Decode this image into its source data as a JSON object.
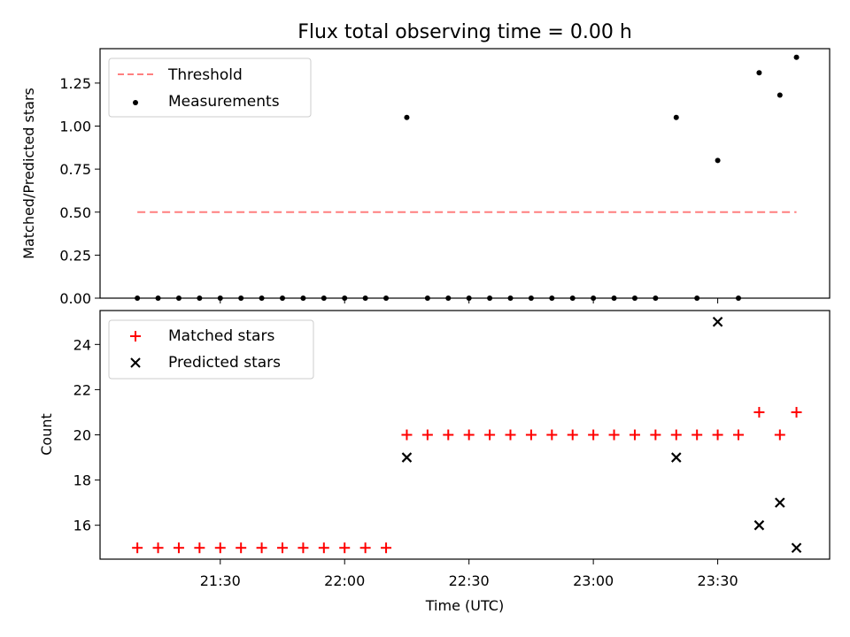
{
  "chart_data": [
    {
      "type": "scatter",
      "title": "Flux total observing time = 0.00 h",
      "ylabel": "Matched/Predicted stars",
      "ylim": [
        0,
        1.45
      ],
      "yticks": [
        0,
        0.25,
        0.5,
        0.75,
        1.0,
        1.25
      ],
      "ytick_labels": [
        "0.00",
        "0.25",
        "0.50",
        "0.75",
        "1.00",
        "1.25"
      ],
      "legend_position": "top-left",
      "series": [
        {
          "name": "Threshold",
          "style": "dashed-line",
          "color": "#ff7f7f",
          "x": [
            "21:10",
            "23:49"
          ],
          "y": [
            0.5,
            0.5
          ]
        },
        {
          "name": "Measurements",
          "style": "dot",
          "color": "#000000",
          "x": [
            "21:10",
            "21:15",
            "21:20",
            "21:25",
            "21:30",
            "21:35",
            "21:40",
            "21:45",
            "21:50",
            "21:55",
            "22:00",
            "22:05",
            "22:10",
            "22:15",
            "22:20",
            "22:25",
            "22:30",
            "22:35",
            "22:40",
            "22:45",
            "22:50",
            "22:55",
            "23:00",
            "23:05",
            "23:10",
            "23:15",
            "23:20",
            "23:25",
            "23:30",
            "23:35",
            "23:40",
            "23:45",
            "23:49"
          ],
          "y": [
            0,
            0,
            0,
            0,
            0,
            0,
            0,
            0,
            0,
            0,
            0,
            0,
            0,
            1.05,
            0,
            0,
            0,
            0,
            0,
            0,
            0,
            0,
            0,
            0,
            0,
            0,
            1.05,
            0,
            0.8,
            0,
            1.31,
            1.18,
            1.4
          ]
        }
      ]
    },
    {
      "type": "scatter",
      "xlabel": "Time (UTC)",
      "ylabel": "Count",
      "xlim": [
        "21:01",
        "23:57"
      ],
      "xticks": [
        "21:30",
        "22:00",
        "22:30",
        "23:00",
        "23:30"
      ],
      "ylim": [
        14.5,
        25.5
      ],
      "yticks": [
        16,
        18,
        20,
        22,
        24
      ],
      "legend_position": "top-left",
      "series": [
        {
          "name": "Matched stars",
          "marker": "plus",
          "color": "#ff0000",
          "x": [
            "21:10",
            "21:15",
            "21:20",
            "21:25",
            "21:30",
            "21:35",
            "21:40",
            "21:45",
            "21:50",
            "21:55",
            "22:00",
            "22:05",
            "22:10",
            "22:15",
            "22:20",
            "22:25",
            "22:30",
            "22:35",
            "22:40",
            "22:45",
            "22:50",
            "22:55",
            "23:00",
            "23:05",
            "23:10",
            "23:15",
            "23:20",
            "23:25",
            "23:30",
            "23:35",
            "23:40",
            "23:45",
            "23:49"
          ],
          "y": [
            15,
            15,
            15,
            15,
            15,
            15,
            15,
            15,
            15,
            15,
            15,
            15,
            15,
            20,
            20,
            20,
            20,
            20,
            20,
            20,
            20,
            20,
            20,
            20,
            20,
            20,
            20,
            20,
            20,
            20,
            21,
            20,
            21
          ]
        },
        {
          "name": "Predicted stars",
          "marker": "x",
          "color": "#000000",
          "x": [
            "22:15",
            "23:20",
            "23:30",
            "23:40",
            "23:45",
            "23:49"
          ],
          "y": [
            19,
            19,
            25,
            16,
            17,
            15
          ]
        }
      ]
    }
  ]
}
